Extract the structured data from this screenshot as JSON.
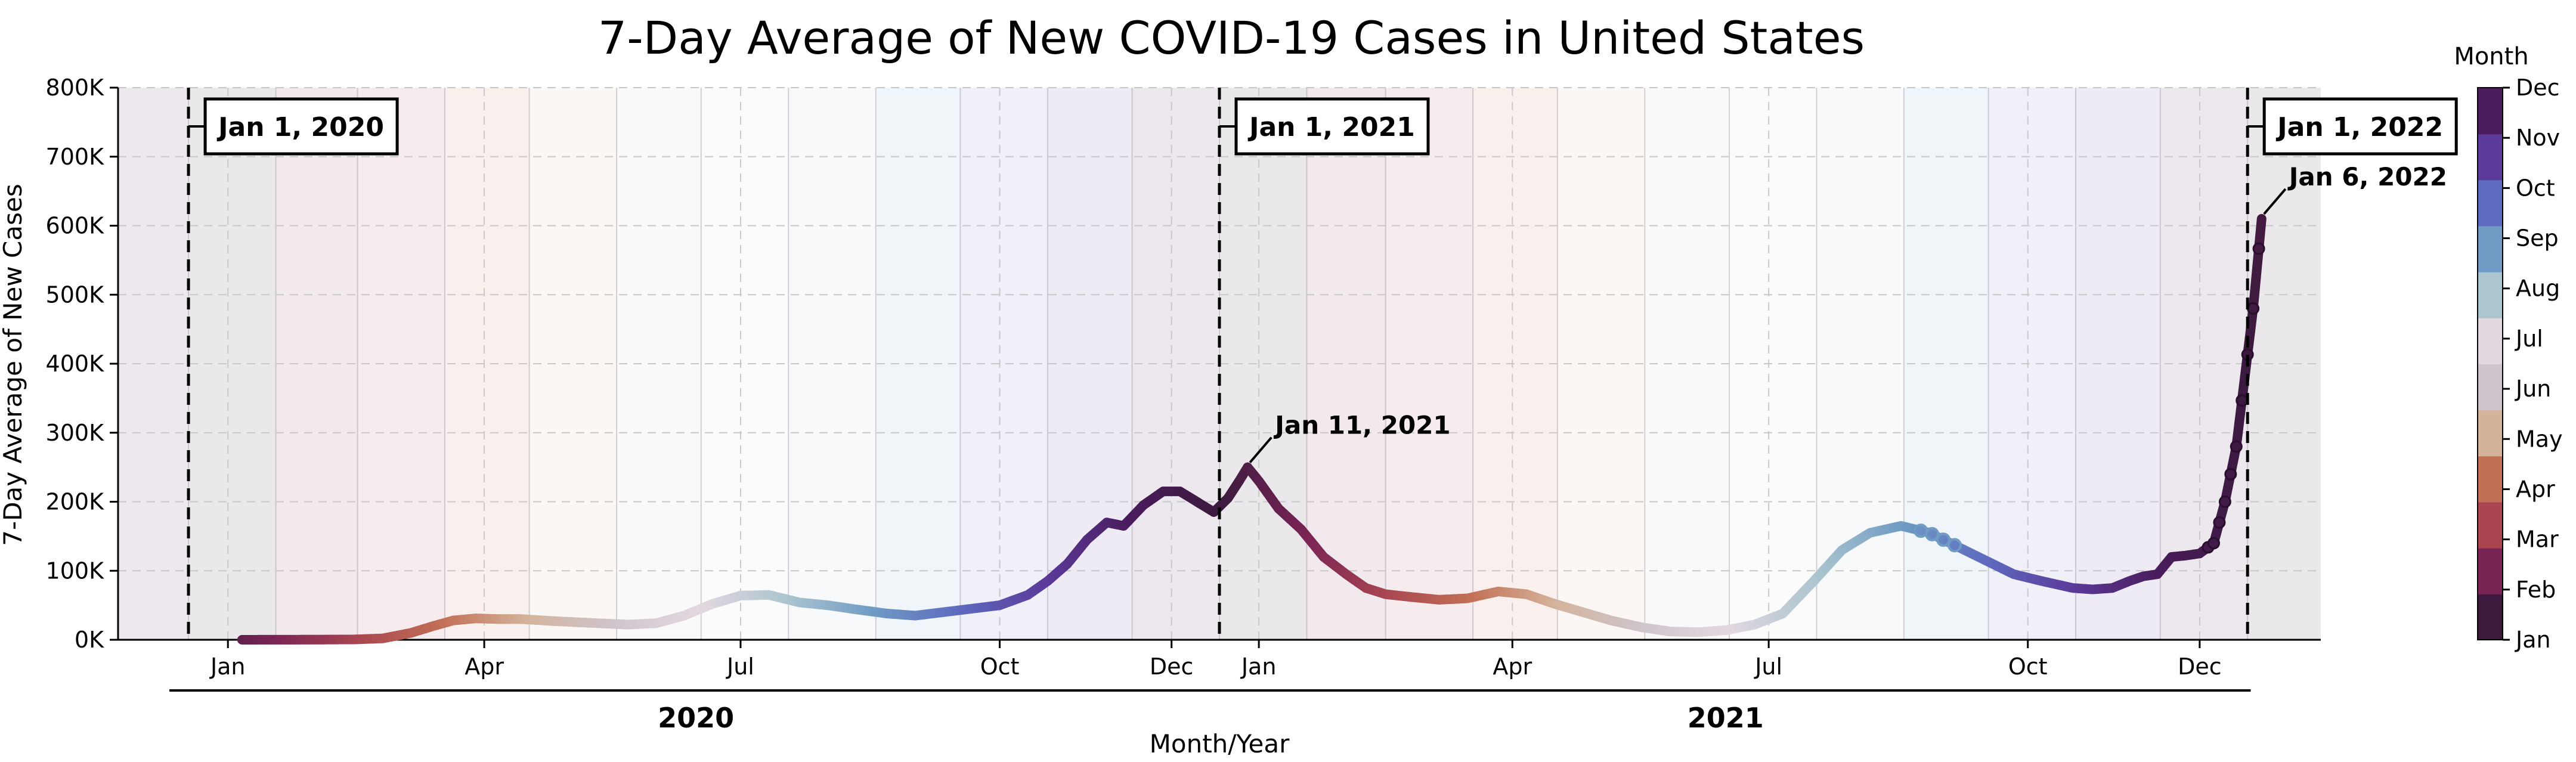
{
  "chart_data": {
    "type": "line",
    "title": "7-Day Average of New COVID-19 Cases in United States",
    "xlabel": "Month/Year",
    "ylabel": "7-Day Average of New Cases",
    "ylim": [
      0,
      800000
    ],
    "xlim": [
      "2019-12-07",
      "2022-01-27"
    ],
    "y_ticks": [
      {
        "value": 0,
        "label": "0K"
      },
      {
        "value": 100000,
        "label": "100K"
      },
      {
        "value": 200000,
        "label": "200K"
      },
      {
        "value": 300000,
        "label": "300K"
      },
      {
        "value": 400000,
        "label": "400K"
      },
      {
        "value": 500000,
        "label": "500K"
      },
      {
        "value": 600000,
        "label": "600K"
      },
      {
        "value": 700000,
        "label": "700K"
      },
      {
        "value": 800000,
        "label": "800K"
      }
    ],
    "x_ticks": [
      {
        "date": "2020-01-15",
        "label": "Jan"
      },
      {
        "date": "2020-04-15",
        "label": "Apr"
      },
      {
        "date": "2020-07-15",
        "label": "Jul"
      },
      {
        "date": "2020-10-15",
        "label": "Oct"
      },
      {
        "date": "2020-12-15",
        "label": "Dec"
      },
      {
        "date": "2021-01-15",
        "label": "Jan"
      },
      {
        "date": "2021-04-15",
        "label": "Apr"
      },
      {
        "date": "2021-07-15",
        "label": "Jul"
      },
      {
        "date": "2021-10-15",
        "label": "Oct"
      },
      {
        "date": "2021-12-15",
        "label": "Dec"
      }
    ],
    "year_groups": [
      {
        "label": "2020",
        "start": "2020-01-01",
        "end": "2020-12-31"
      },
      {
        "label": "2021",
        "start": "2021-01-01",
        "end": "2021-12-31"
      }
    ],
    "grid": true,
    "month_shading": true,
    "year_markers": [
      {
        "date": "2020-01-01",
        "label": "Jan 1, 2020"
      },
      {
        "date": "2021-01-01",
        "label": "Jan 1, 2021"
      },
      {
        "date": "2022-01-01",
        "label": "Jan 1, 2022"
      }
    ],
    "annotations": [
      {
        "date": "2021-01-11",
        "value": 250000,
        "label": "Jan 11, 2021"
      },
      {
        "date": "2022-01-06",
        "value": 610000,
        "label": "Jan 6, 2022"
      }
    ],
    "colorbar": {
      "title": "Month",
      "placement": "right",
      "labels": [
        "Jan",
        "Feb",
        "Mar",
        "Apr",
        "May",
        "Jun",
        "Jul",
        "Aug",
        "Sep",
        "Oct",
        "Nov",
        "Dec"
      ],
      "colors": [
        "#3b1a3e",
        "#7a2456",
        "#a84551",
        "#c27055",
        "#d4b39b",
        "#cec5cd",
        "#e4d8e0",
        "#acc5cf",
        "#6f9bc4",
        "#5e6bbf",
        "#5b3a9a",
        "#4a1c5c"
      ]
    },
    "series": [
      {
        "x": [
          "2020-01-20",
          "2020-01-31",
          "2020-02-15",
          "2020-02-29",
          "2020-03-10",
          "2020-03-20",
          "2020-03-28",
          "2020-04-04",
          "2020-04-12",
          "2020-04-20",
          "2020-04-28",
          "2020-05-10",
          "2020-05-25",
          "2020-06-05",
          "2020-06-15",
          "2020-06-25",
          "2020-07-05",
          "2020-07-15",
          "2020-07-25",
          "2020-08-05",
          "2020-08-15",
          "2020-08-25",
          "2020-09-05",
          "2020-09-15",
          "2020-09-25",
          "2020-10-05",
          "2020-10-15",
          "2020-10-25",
          "2020-11-01",
          "2020-11-08",
          "2020-11-15",
          "2020-11-22",
          "2020-11-28",
          "2020-12-05",
          "2020-12-12",
          "2020-12-18",
          "2020-12-24",
          "2020-12-30",
          "2021-01-04",
          "2021-01-08",
          "2021-01-11",
          "2021-01-15",
          "2021-01-22",
          "2021-01-30",
          "2021-02-07",
          "2021-02-15",
          "2021-02-22",
          "2021-03-01",
          "2021-03-10",
          "2021-03-20",
          "2021-03-30",
          "2021-04-10",
          "2021-04-20",
          "2021-04-30",
          "2021-05-10",
          "2021-05-20",
          "2021-05-31",
          "2021-06-10",
          "2021-06-20",
          "2021-06-30",
          "2021-07-10",
          "2021-07-20",
          "2021-07-31",
          "2021-08-10",
          "2021-08-20",
          "2021-08-31",
          "2021-09-05",
          "2021-09-10",
          "2021-09-20",
          "2021-09-30",
          "2021-10-10",
          "2021-10-20",
          "2021-10-31",
          "2021-11-07",
          "2021-11-14",
          "2021-11-20",
          "2021-11-25",
          "2021-11-30",
          "2021-12-05",
          "2021-12-10",
          "2021-12-15",
          "2021-12-20",
          "2021-12-24",
          "2021-12-28",
          "2021-12-31",
          "2022-01-03",
          "2022-01-06"
        ],
        "values": [
          0,
          100,
          200,
          500,
          2000,
          10000,
          20000,
          28000,
          31000,
          30000,
          30000,
          27000,
          24000,
          22000,
          24000,
          35000,
          52000,
          64000,
          65000,
          54000,
          50000,
          44000,
          38000,
          35000,
          40000,
          45000,
          50000,
          65000,
          85000,
          110000,
          145000,
          170000,
          165000,
          195000,
          215000,
          215000,
          200000,
          185000,
          205000,
          230000,
          250000,
          230000,
          190000,
          160000,
          120000,
          95000,
          75000,
          66000,
          62000,
          58000,
          60000,
          70000,
          66000,
          52000,
          40000,
          28000,
          18000,
          12000,
          11000,
          14000,
          22000,
          38000,
          85000,
          130000,
          155000,
          165000,
          160000,
          155000,
          135000,
          115000,
          95000,
          85000,
          75000,
          73000,
          75000,
          85000,
          92000,
          95000,
          120000,
          122000,
          125000,
          140000,
          200000,
          280000,
          380000,
          480000,
          610000
        ]
      }
    ]
  }
}
